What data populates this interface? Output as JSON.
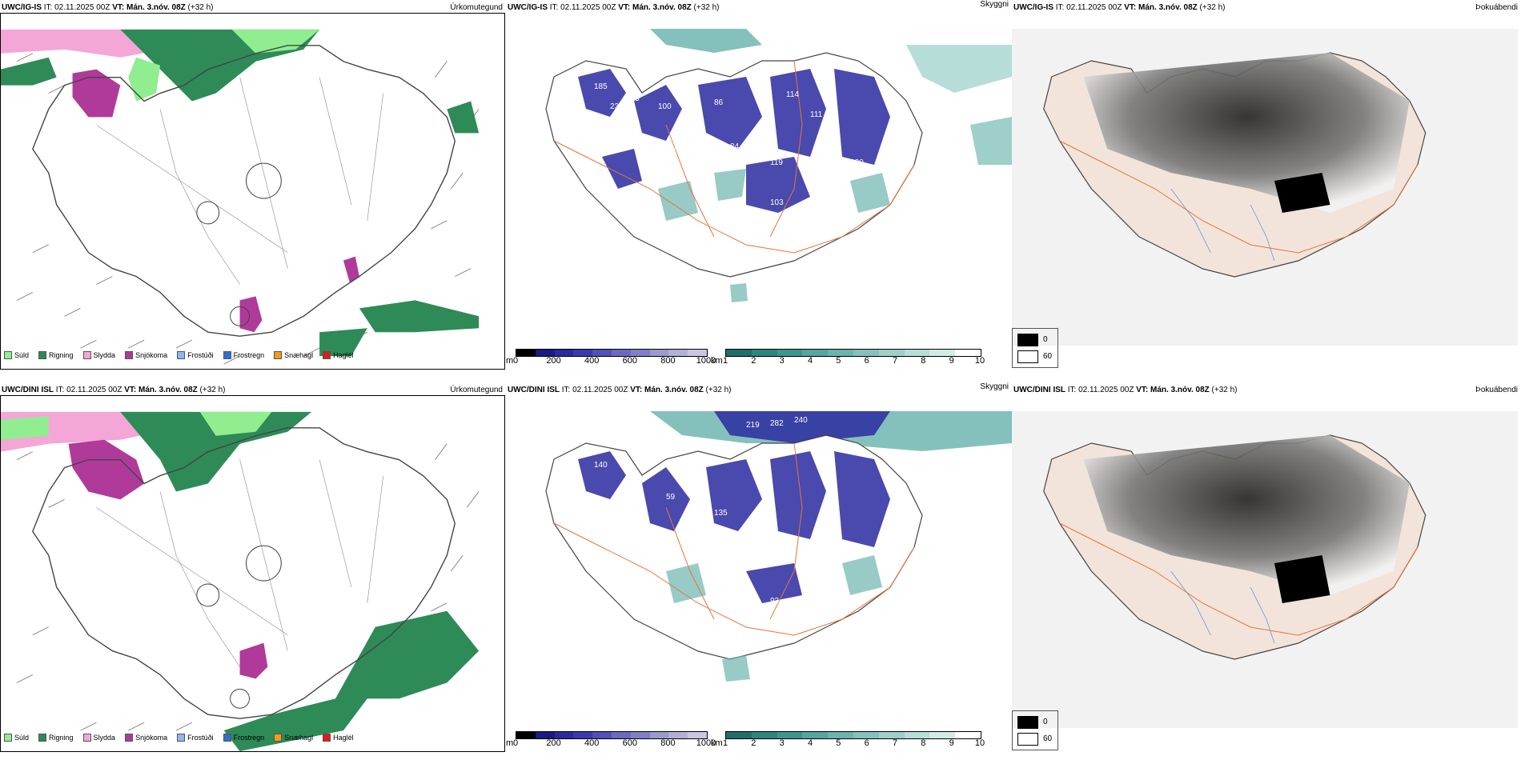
{
  "rows": [
    {
      "model": "UWC/IG-IS",
      "it_label": "IT:",
      "it_value": "02.11.2025 00Z",
      "vt_label": "VT:",
      "vt_value": "Mán. 3.nóv. 08Z",
      "lead": "(+32 h)",
      "titles": {
        "precip": "Úrkomutegund",
        "cloud": "Skyggni",
        "fog": "Þokuábendi"
      }
    },
    {
      "model": "UWC/DINI ISL",
      "it_label": "IT:",
      "it_value": "02.11.2025 00Z",
      "vt_label": "VT:",
      "vt_value": "Mán. 3.nóv. 08Z",
      "lead": "(+32 h)",
      "titles": {
        "precip": "Úrkomutegund",
        "cloud": "Skyggni",
        "fog": "Þokuábendi"
      }
    }
  ],
  "precip_legend": [
    {
      "label": "Súld",
      "color": "#90ee90"
    },
    {
      "label": "Rigning",
      "color": "#2e8b57"
    },
    {
      "label": "Slydda",
      "color": "#f4a6d7"
    },
    {
      "label": "Snjókoma",
      "color": "#b03a9a"
    },
    {
      "label": "Frostúði",
      "color": "#8ab8f0"
    },
    {
      "label": "Frostregn",
      "color": "#2f6fcf"
    },
    {
      "label": "Snæhagl",
      "color": "#f39c12"
    },
    {
      "label": "Haglél",
      "color": "#e31a1c"
    }
  ],
  "cloud_base": {
    "unit": "m",
    "ticks": [
      "0",
      "200",
      "400",
      "600",
      "800",
      "1000"
    ],
    "colors": [
      "#000000",
      "#1a1a80",
      "#2a2aa0",
      "#3a3ab0",
      "#5050b8",
      "#6a6ac0",
      "#8080c8",
      "#9a9ad0",
      "#b0b0d8",
      "#c8c8e4"
    ]
  },
  "visibility": {
    "unit": "km",
    "ticks": [
      "1",
      "2",
      "3",
      "4",
      "5",
      "6",
      "7",
      "8",
      "9",
      "10"
    ],
    "colors": [
      "#1f6f6a",
      "#2d8580",
      "#3f9590",
      "#55a5a0",
      "#6cb3ae",
      "#85c1bc",
      "#9ecfca",
      "#b7ddd9",
      "#d0ebe8",
      "#ffffff"
    ]
  },
  "fog_index": {
    "low": "0",
    "high": "60",
    "low_color": "#000000",
    "high_color": "#ffffff"
  },
  "colors": {
    "land_fill": "#f2e4da",
    "coast": "#444444",
    "roads": "#e8743b",
    "rivers": "#6f8fd8",
    "rain": "#2e8b57",
    "drizzle": "#90ee90",
    "snow": "#b03a9a",
    "sleet": "#f4a6d7"
  }
}
